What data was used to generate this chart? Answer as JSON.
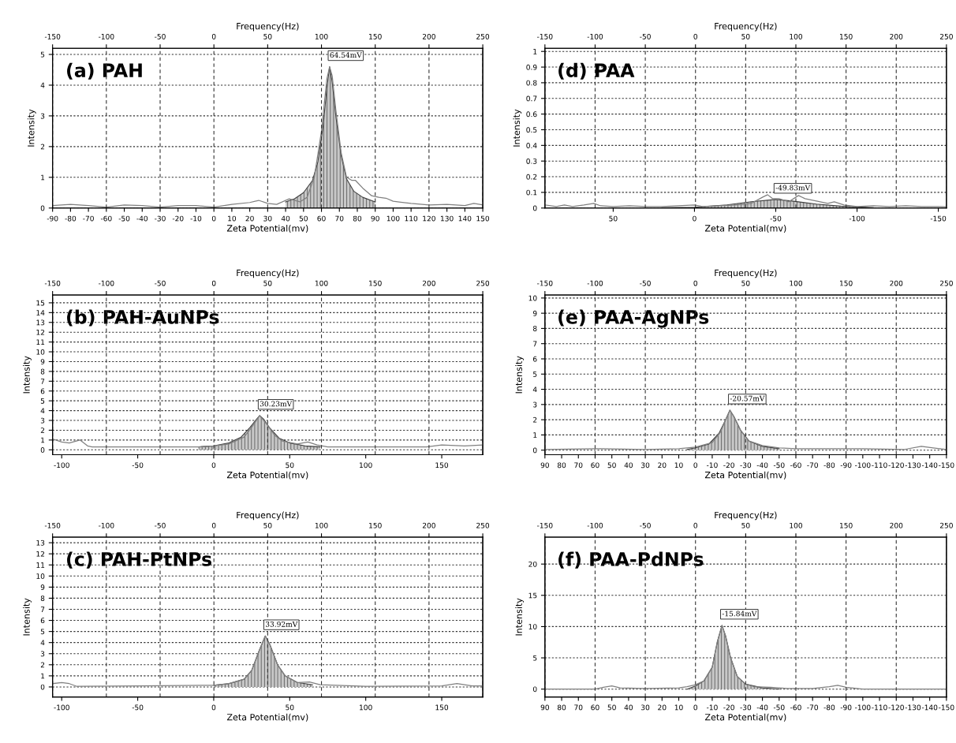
{
  "chart_data": [
    {
      "type": "line",
      "title": "(a) PAH",
      "xlabel": "Zeta Potential(mv)",
      "x2label": "Frequency(Hz)",
      "ylabel": "Intensity",
      "grid": true,
      "xlim": [
        -90,
        150
      ],
      "xticks": [
        -90,
        -80,
        -70,
        -60,
        -50,
        -40,
        -30,
        -20,
        -10,
        0,
        10,
        20,
        30,
        40,
        50,
        60,
        70,
        80,
        90,
        100,
        110,
        120,
        130,
        140,
        150
      ],
      "x2lim": [
        -150,
        250
      ],
      "x2ticks": [
        -150,
        -100,
        -50,
        0,
        50,
        100,
        150,
        200,
        250
      ],
      "ylim": [
        0,
        5.2
      ],
      "yticks": [
        0,
        1,
        2,
        3,
        4,
        5
      ],
      "annotations": [
        {
          "text": "64.54mV",
          "x": 64.54,
          "y": 4.6
        }
      ],
      "series": [
        {
          "type": "line",
          "color": "#808080",
          "x": [
            -90,
            -80,
            -70,
            -60,
            -50,
            -40,
            -30,
            -20,
            -10,
            0,
            10,
            20,
            25,
            30,
            35,
            42,
            48,
            52,
            56,
            60,
            63,
            64.54,
            66,
            68,
            71,
            74,
            77,
            79,
            83,
            88,
            92,
            96,
            100,
            110,
            120,
            130,
            140,
            145,
            150
          ],
          "values": [
            0.08,
            0.12,
            0.08,
            0.03,
            0.1,
            0.08,
            0.03,
            0.08,
            0.08,
            0.03,
            0.12,
            0.18,
            0.25,
            0.15,
            0.12,
            0.3,
            0.2,
            0.35,
            1.0,
            2.5,
            4.2,
            4.6,
            4.3,
            3.2,
            1.8,
            1.0,
            0.9,
            0.9,
            0.65,
            0.4,
            0.35,
            0.32,
            0.22,
            0.15,
            0.1,
            0.12,
            0.08,
            0.15,
            0.1
          ]
        },
        {
          "type": "area",
          "color": "#404040",
          "x": [
            40,
            45,
            50,
            55,
            58,
            61,
            63,
            64.54,
            66,
            68,
            71,
            74,
            78,
            83,
            90
          ],
          "values": [
            0.2,
            0.3,
            0.5,
            0.9,
            1.5,
            2.7,
            3.9,
            4.6,
            4.1,
            3.0,
            1.7,
            0.95,
            0.55,
            0.35,
            0.2
          ]
        }
      ]
    },
    {
      "type": "line",
      "title": "(d) PAA",
      "xlabel": "Zeta Potential(mv)",
      "x2label": "Frequency(Hz)",
      "ylabel": "Intensity",
      "grid": true,
      "xlim": [
        92,
        -155
      ],
      "xticks": [
        50,
        0,
        -50,
        -100,
        -150
      ],
      "x2lim": [
        -150,
        250
      ],
      "x2ticks": [
        -150,
        -100,
        -50,
        0,
        50,
        100,
        150,
        200,
        250
      ],
      "ylim": [
        0,
        1.02
      ],
      "yticks": [
        0,
        0.1,
        0.2,
        0.3,
        0.4,
        0.5,
        0.6,
        0.7,
        0.8,
        0.9,
        1
      ],
      "annotations": [
        {
          "text": "-49.83mV",
          "x": -49.83,
          "y": 0.055
        }
      ],
      "series": [
        {
          "type": "line",
          "color": "#808080",
          "x": [
            92,
            85,
            80,
            75,
            68,
            62,
            58,
            50,
            40,
            30,
            20,
            10,
            0,
            -5,
            -15,
            -25,
            -35,
            -42,
            -45,
            -48,
            -52,
            -58,
            -64,
            -68,
            -75,
            -82,
            -86,
            -92,
            -100,
            -110,
            -120,
            -130,
            -140,
            -150,
            -155
          ],
          "values": [
            0.02,
            0.01,
            0.02,
            0.01,
            0.02,
            0.03,
            0.015,
            0.01,
            0.015,
            0.01,
            0.01,
            0.015,
            0.02,
            0.01,
            0.015,
            0.02,
            0.03,
            0.07,
            0.085,
            0.06,
            0.06,
            0.04,
            0.08,
            0.06,
            0.045,
            0.03,
            0.04,
            0.02,
            0.01,
            0.015,
            0.01,
            0.015,
            0.01,
            0.01,
            0.008
          ]
        },
        {
          "type": "area",
          "color": "#404040",
          "x": [
            20,
            0,
            -20,
            -35,
            -49.83,
            -60,
            -75,
            -90,
            -110
          ],
          "values": [
            0.002,
            0.005,
            0.02,
            0.04,
            0.055,
            0.045,
            0.025,
            0.012,
            0.003
          ]
        }
      ]
    },
    {
      "type": "line",
      "title": "(b) PAH-AuNPs",
      "xlabel": "Zeta Potential(mv)",
      "x2label": "Frequency(Hz)",
      "ylabel": "Intensity",
      "grid": true,
      "xlim": [
        -106,
        177
      ],
      "xticks": [
        -100,
        -50,
        0,
        50,
        100,
        150
      ],
      "x2lim": [
        -150,
        250
      ],
      "x2ticks": [
        -150,
        -100,
        -50,
        0,
        50,
        100,
        150,
        200,
        250
      ],
      "ylim": [
        -0.5,
        15.8
      ],
      "yticks": [
        0,
        1,
        2,
        3,
        4,
        5,
        6,
        7,
        8,
        9,
        10,
        11,
        12,
        13,
        14,
        15
      ],
      "annotations": [
        {
          "text": "30.23mV",
          "x": 30.23,
          "y": 3.5
        }
      ],
      "series": [
        {
          "type": "line",
          "color": "#808080",
          "x": [
            -106,
            -100,
            -95,
            -88,
            -83,
            -80,
            -70,
            -50,
            -30,
            -10,
            0,
            10,
            20,
            25,
            30.23,
            35,
            40,
            45,
            55,
            62,
            68,
            75,
            100,
            120,
            140,
            150,
            165,
            177
          ],
          "values": [
            1.1,
            0.8,
            0.7,
            1.0,
            0.4,
            0.3,
            0.3,
            0.3,
            0.3,
            0.3,
            0.4,
            0.6,
            1.3,
            2.3,
            3.5,
            2.6,
            1.5,
            0.9,
            0.6,
            0.8,
            0.5,
            0.3,
            0.3,
            0.3,
            0.3,
            0.5,
            0.4,
            0.5
          ]
        },
        {
          "type": "area",
          "color": "#404040",
          "x": [
            -10,
            0,
            10,
            18,
            24,
            28,
            30.23,
            33,
            37,
            43,
            50,
            60,
            70
          ],
          "values": [
            0.3,
            0.4,
            0.7,
            1.3,
            2.3,
            3.1,
            3.5,
            3.1,
            2.2,
            1.2,
            0.7,
            0.4,
            0.3
          ]
        }
      ]
    },
    {
      "type": "line",
      "title": "(e) PAA-AgNPs",
      "xlabel": "Zeta Potential(mv)",
      "x2label": "Frequency(Hz)",
      "ylabel": "Intensity",
      "grid": true,
      "xlim": [
        90,
        -150
      ],
      "xticks": [
        90,
        80,
        70,
        60,
        50,
        40,
        30,
        20,
        10,
        0,
        -10,
        -20,
        -30,
        -40,
        -50,
        -60,
        -70,
        -80,
        -90,
        -100,
        -110,
        -120,
        -130,
        -140,
        -150
      ],
      "x2lim": [
        -150,
        250
      ],
      "x2ticks": [
        -150,
        -100,
        -50,
        0,
        50,
        100,
        150,
        200,
        250
      ],
      "ylim": [
        -0.3,
        10.2
      ],
      "yticks": [
        0,
        1,
        2,
        3,
        4,
        5,
        6,
        7,
        8,
        9,
        10
      ],
      "annotations": [
        {
          "text": "-20.57mV",
          "x": -20.57,
          "y": 2.63
        }
      ],
      "series": [
        {
          "type": "line",
          "color": "#808080",
          "x": [
            90,
            60,
            30,
            10,
            0,
            -10,
            -15,
            -18,
            -20.57,
            -23,
            -27,
            -32,
            -40,
            -50,
            -60,
            -100,
            -125,
            -135,
            -142,
            -150
          ],
          "values": [
            0.05,
            0.1,
            0.05,
            0.1,
            0.2,
            0.5,
            1.2,
            2.0,
            2.63,
            2.2,
            1.3,
            0.6,
            0.3,
            0.15,
            0.1,
            0.1,
            0.05,
            0.25,
            0.15,
            0.05
          ]
        },
        {
          "type": "area",
          "color": "#404040",
          "x": [
            5,
            0,
            -8,
            -14,
            -18,
            -20.57,
            -23,
            -27,
            -32,
            -40,
            -50
          ],
          "values": [
            0.05,
            0.15,
            0.4,
            1.1,
            2.0,
            2.63,
            2.2,
            1.3,
            0.6,
            0.25,
            0.1
          ]
        }
      ]
    },
    {
      "type": "line",
      "title": "(c) PAH-PtNPs",
      "xlabel": "Zeta Potential(mv)",
      "x2label": "Frequency(Hz)",
      "ylabel": "Intensity",
      "grid": true,
      "xlim": [
        -106,
        177
      ],
      "xticks": [
        -100,
        -50,
        0,
        50,
        100,
        150
      ],
      "x2lim": [
        -150,
        250
      ],
      "x2ticks": [
        -150,
        -100,
        -50,
        0,
        50,
        100,
        150,
        200,
        250
      ],
      "ylim": [
        -0.9,
        13.5
      ],
      "yticks": [
        0,
        1,
        2,
        3,
        4,
        5,
        6,
        7,
        8,
        9,
        10,
        11,
        12,
        13
      ],
      "annotations": [
        {
          "text": "33.92mV",
          "x": 33.92,
          "y": 4.6
        }
      ],
      "series": [
        {
          "type": "line",
          "color": "#808080",
          "x": [
            -106,
            -100,
            -95,
            -90,
            -50,
            0,
            10,
            20,
            25,
            30,
            33.92,
            37,
            42,
            47,
            55,
            63,
            70,
            100,
            150,
            160,
            170,
            177
          ],
          "values": [
            0.3,
            0.4,
            0.3,
            0.05,
            0.1,
            0.15,
            0.3,
            0.7,
            1.5,
            3.3,
            4.6,
            3.8,
            2.0,
            1.0,
            0.4,
            0.45,
            0.2,
            0.05,
            0.1,
            0.3,
            0.1,
            0.1
          ]
        },
        {
          "type": "area",
          "color": "#404040",
          "x": [
            0,
            10,
            20,
            25,
            30,
            33.92,
            37,
            42,
            47,
            55,
            65
          ],
          "values": [
            0.15,
            0.3,
            0.7,
            1.5,
            3.3,
            4.6,
            3.8,
            2.0,
            1.0,
            0.4,
            0.2
          ]
        }
      ]
    },
    {
      "type": "line",
      "title": "(f) PAA-PdNPs",
      "xlabel": "Zeta Potential(mv)",
      "x2label": "Frequency(Hz)",
      "ylabel": "Intensity",
      "grid": true,
      "xlim": [
        90,
        -150
      ],
      "xticks": [
        90,
        80,
        70,
        60,
        50,
        40,
        30,
        20,
        10,
        0,
        -10,
        -20,
        -30,
        -40,
        -50,
        -60,
        -70,
        -80,
        -90,
        -100,
        -110,
        -120,
        -130,
        -140,
        -150
      ],
      "x2lim": [
        -150,
        250
      ],
      "x2ticks": [
        -150,
        -100,
        -50,
        0,
        50,
        100,
        150,
        200,
        250
      ],
      "ylim": [
        -1.25,
        24.3
      ],
      "yticks": [
        0,
        5,
        10,
        15,
        20
      ],
      "annotations": [
        {
          "text": "-15.84mV",
          "x": -15.84,
          "y": 10.2
        }
      ],
      "series": [
        {
          "type": "line",
          "color": "#808080",
          "x": [
            90,
            60,
            55,
            50,
            45,
            30,
            10,
            5,
            0,
            -5,
            -10,
            -13,
            -15.84,
            -18,
            -21,
            -25,
            -30,
            -35,
            -45,
            -55,
            -70,
            -80,
            -85,
            -90,
            -100,
            -150
          ],
          "values": [
            0.0,
            0.0,
            0.3,
            0.5,
            0.2,
            0.1,
            0.2,
            0.4,
            0.7,
            1.3,
            3.5,
            7.5,
            10.2,
            8.5,
            5.0,
            2.0,
            0.8,
            0.4,
            0.3,
            0.1,
            0.1,
            0.4,
            0.6,
            0.3,
            0.0,
            0.0
          ]
        },
        {
          "type": "area",
          "color": "#404040",
          "x": [
            5,
            0,
            -5,
            -10,
            -13,
            -15.84,
            -18,
            -21,
            -25,
            -30,
            -40,
            -50
          ],
          "values": [
            0.0,
            0.5,
            1.3,
            3.5,
            7.5,
            10.2,
            8.5,
            5.0,
            2.0,
            0.8,
            0.2,
            0.0
          ]
        }
      ]
    }
  ]
}
